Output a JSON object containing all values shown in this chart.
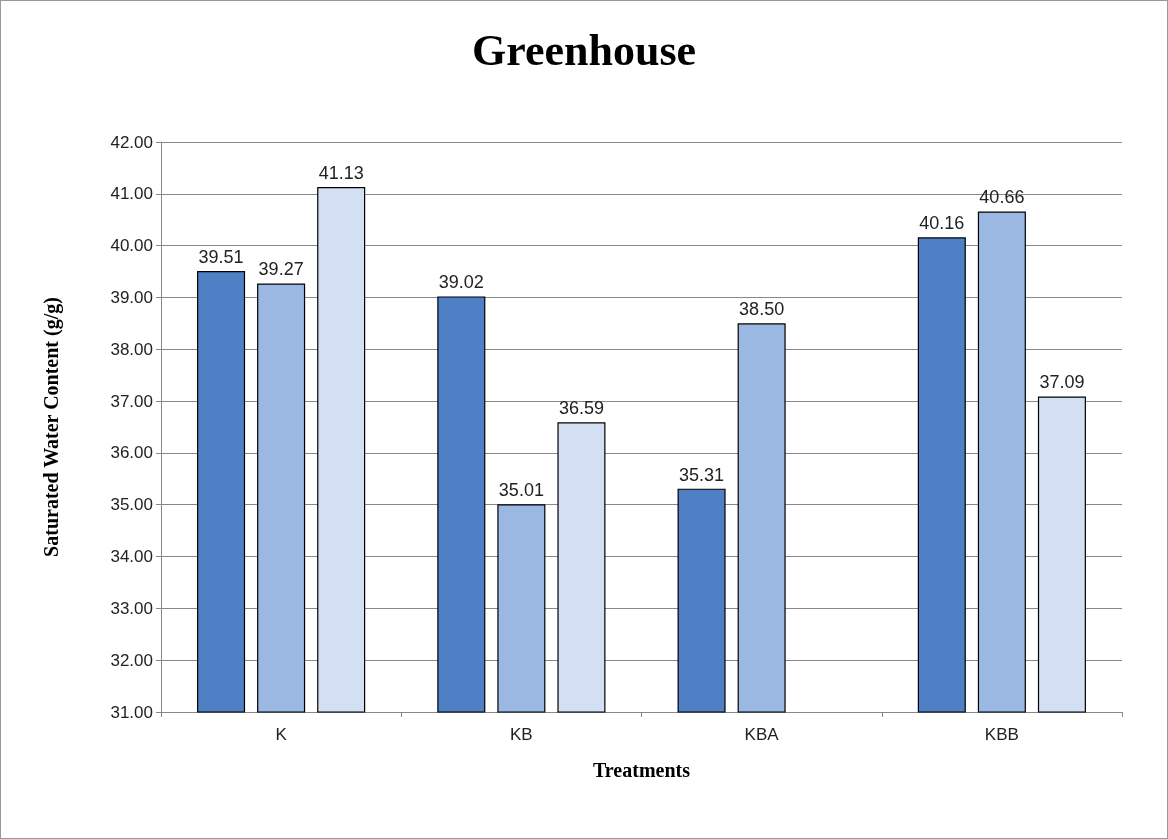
{
  "chart_data": {
    "type": "bar",
    "title": "Greenhouse",
    "xlabel": "Treatments",
    "ylabel": "Saturated Water Content (g/g)",
    "categories": [
      "K",
      "KB",
      "KBA",
      "KBB"
    ],
    "series": [
      {
        "color": "#4f7fc4",
        "values": [
          39.51,
          39.02,
          35.31,
          40.16
        ],
        "value_labels": [
          "39.51",
          "39.02",
          "35.31",
          "40.16"
        ]
      },
      {
        "color": "#9ab8e2",
        "values": [
          39.27,
          35.01,
          38.5,
          40.66
        ],
        "value_labels": [
          "39.27",
          "35.01",
          "38.50",
          "40.66"
        ]
      },
      {
        "color": "#d3e0f3",
        "values": [
          41.13,
          36.59,
          null,
          37.09
        ],
        "value_labels": [
          "41.13",
          "36.59",
          null,
          "37.09"
        ]
      }
    ],
    "ylim": [
      31,
      42
    ],
    "yticks": [
      {
        "value": 31,
        "label": "31.00"
      },
      {
        "value": 32,
        "label": "32.00"
      },
      {
        "value": 33,
        "label": "33.00"
      },
      {
        "value": 34,
        "label": "34.00"
      },
      {
        "value": 35,
        "label": "35.00"
      },
      {
        "value": 36,
        "label": "36.00"
      },
      {
        "value": 37,
        "label": "37.00"
      },
      {
        "value": 38,
        "label": "38.00"
      },
      {
        "value": 39,
        "label": "39.00"
      },
      {
        "value": 40,
        "label": "40.00"
      },
      {
        "value": 41,
        "label": "41.00"
      },
      {
        "value": 42,
        "label": "42.00"
      }
    ],
    "grid": "y"
  }
}
